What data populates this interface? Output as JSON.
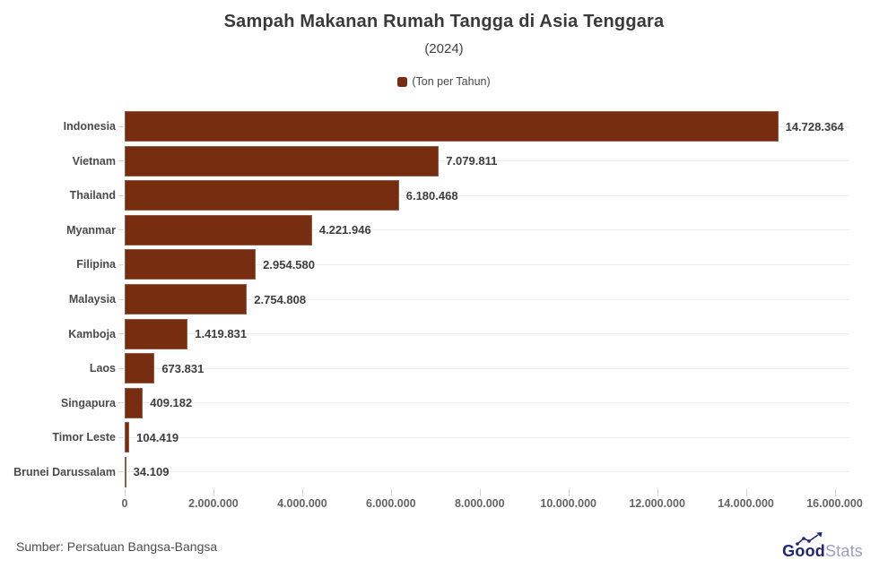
{
  "chart_data": {
    "type": "bar",
    "orientation": "horizontal",
    "title": "Sampah Makanan Rumah Tangga di Asia Tenggara",
    "subtitle": "(2024)",
    "legend_label": "(Ton per Tahun)",
    "legend_position": "top",
    "categories": [
      "Indonesia",
      "Vietnam",
      "Thailand",
      "Myanmar",
      "Filipina",
      "Malaysia",
      "Kamboja",
      "Laos",
      "Singapura",
      "Timor Leste",
      "Brunei Darussalam"
    ],
    "values": [
      14728364,
      7079811,
      6180468,
      4221946,
      2954580,
      2754808,
      1419831,
      673831,
      409182,
      104419,
      34109
    ],
    "value_labels": [
      "14.728.364",
      "7.079.811",
      "6.180.468",
      "4.221.946",
      "2.954.580",
      "2.754.808",
      "1.419.831",
      "673.831",
      "409.182",
      "104.419",
      "34.109"
    ],
    "xlabel": "",
    "ylabel": "",
    "xlim": [
      0,
      16000000
    ],
    "x_tick_values": [
      0,
      2000000,
      4000000,
      6000000,
      8000000,
      10000000,
      12000000,
      14000000,
      16000000
    ],
    "x_tick_labels": [
      "0",
      "2.000.000",
      "4.000.000",
      "6.000.000",
      "8.000.000",
      "10.000.000",
      "12.000.000",
      "14.000.000",
      "16.000.000"
    ],
    "bar_color": "#772E10",
    "grid": true
  },
  "footer": {
    "source": "Sumber: Persatuan Bangsa-Bangsa",
    "brand_bold": "Good",
    "brand_light": "Stats"
  }
}
